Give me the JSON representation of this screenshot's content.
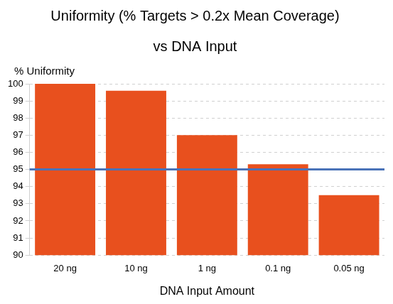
{
  "chart_data": {
    "type": "bar",
    "title": [
      "Uniformity (% Targets > 0.2x Mean Coverage)",
      "vs DNA Input"
    ],
    "y_label": "% Uniformity",
    "x_label": "DNA Input Amount",
    "categories": [
      "20 ng",
      "10 ng",
      "1 ng",
      "0.1 ng",
      "0.05 ng"
    ],
    "values": [
      100,
      99.6,
      97,
      95.3,
      93.5
    ],
    "color": "#e8501e",
    "ylim": [
      90,
      100
    ],
    "yticks": [
      90,
      91,
      92,
      93,
      94,
      95,
      96,
      97,
      98,
      99,
      100
    ],
    "grid": true,
    "reference_line": {
      "value": 95,
      "color": "#4a72b8"
    }
  }
}
